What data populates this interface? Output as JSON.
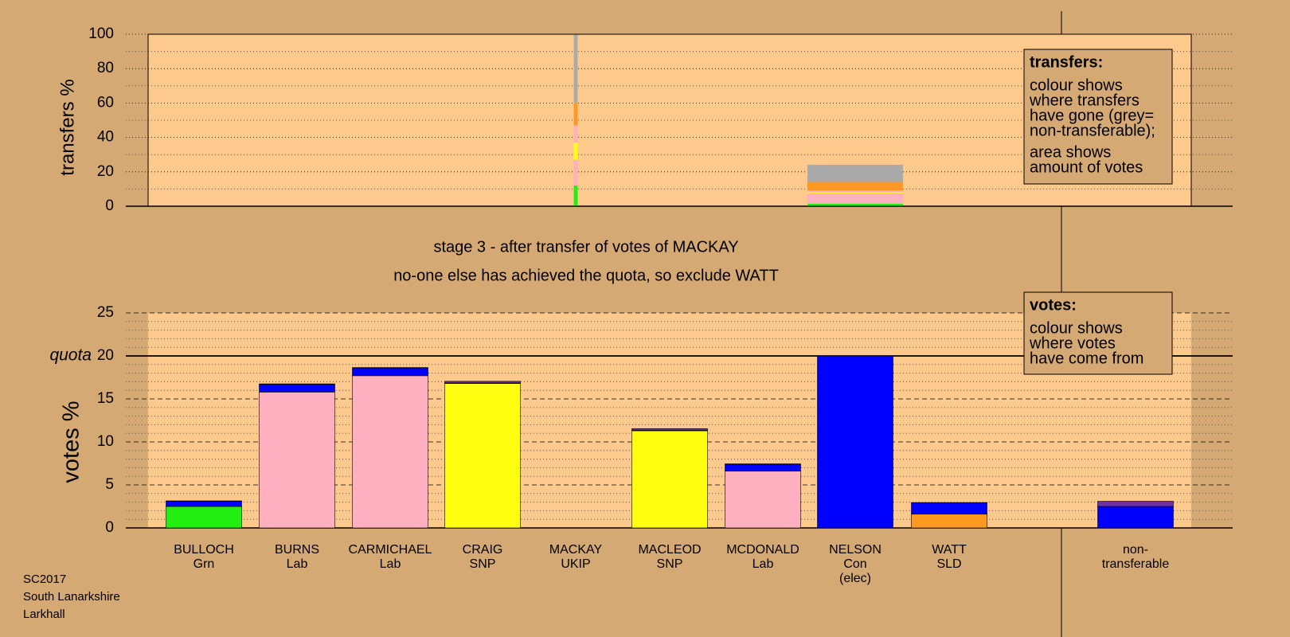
{
  "chart_data": [
    {
      "type": "stacked-bar",
      "ylabel": "transfers %",
      "ylim": [
        0,
        100
      ],
      "yticks": [
        0,
        20,
        40,
        60,
        80,
        100
      ],
      "minor_yticks": [
        10,
        30,
        50,
        70,
        90
      ],
      "bar_widths": [
        null,
        null,
        null,
        null,
        0.4,
        null,
        null,
        10,
        null,
        null,
        null
      ],
      "series": [
        {
          "color": "#22ee11",
          "values": [
            null,
            null,
            null,
            null,
            12,
            null,
            null,
            1.5,
            null,
            null,
            null
          ]
        },
        {
          "color": "#ffb0c0",
          "values": [
            null,
            null,
            null,
            null,
            7,
            null,
            null,
            3,
            null,
            null,
            null
          ]
        },
        {
          "color": "#ffb0c0",
          "values": [
            null,
            null,
            null,
            null,
            8,
            null,
            null,
            3,
            null,
            null,
            null
          ]
        },
        {
          "color": "#ffff11",
          "values": [
            null,
            null,
            null,
            null,
            5,
            null,
            null,
            0.3,
            null,
            null,
            null
          ]
        },
        {
          "color": "#ffff11",
          "values": [
            null,
            null,
            null,
            null,
            5,
            null,
            null,
            0.3,
            null,
            null,
            null
          ]
        },
        {
          "color": "#ffb0c0",
          "values": [
            null,
            null,
            null,
            null,
            10,
            null,
            null,
            1,
            null,
            null,
            null
          ]
        },
        {
          "color": "#ff9922",
          "values": [
            null,
            null,
            null,
            null,
            13,
            null,
            null,
            5,
            null,
            null,
            null
          ]
        },
        {
          "color": "#aaaaaa",
          "values": [
            null,
            null,
            null,
            null,
            40,
            null,
            null,
            10,
            null,
            null,
            null
          ]
        }
      ],
      "legend_title": "transfers:",
      "legend_lines": [
        "colour shows",
        "where transfers",
        "have gone (grey=",
        "non-transferable);"
      ],
      "legend_lines2": [
        "area shows",
        "amount of votes"
      ]
    },
    {
      "type": "stacked-bar",
      "title": "stage 3 - after transfer of votes of MACKAY",
      "subtitle": "no-one else has achieved the quota, so exclude WATT",
      "ylabel": "votes %",
      "ylim": [
        0,
        25
      ],
      "yticks": [
        0,
        5,
        10,
        15,
        20,
        25
      ],
      "minor_yticks": [
        1,
        2,
        3,
        4,
        6,
        7,
        8,
        9,
        11,
        12,
        13,
        14,
        16,
        17,
        18,
        19,
        21,
        22,
        23,
        24
      ],
      "quota": 20,
      "quota_label": "quota",
      "categories": [
        "BULLOCH\nGrn",
        "BURNS\nLab",
        "CARMICHAEL\nLab",
        "CRAIG\nSNP",
        "MACKAY\nUKIP",
        "MACLEOD\nSNP",
        "MCDONALD\nLab",
        "NELSON\nCon\n(elec)",
        "WATT\nSLD",
        null,
        "non-\ntransferable"
      ],
      "series": [
        {
          "colors": [
            "#22ee11",
            "#ffb0c0",
            "#ffb0c0",
            "#ffff11",
            "#7030a0",
            "#ffff11",
            "#ffb0c0",
            "#0000ff",
            "#ff9922",
            null,
            "#aaaaaa"
          ],
          "values": [
            2.5,
            15.8,
            17.7,
            16.8,
            0,
            11.3,
            6.6,
            20,
            1.6,
            null,
            0
          ]
        },
        {
          "color": "#0000ff",
          "values": [
            0.6,
            0.9,
            0.9,
            0.05,
            0,
            0.05,
            0.8,
            0,
            1.3,
            null,
            2.5
          ]
        },
        {
          "color": "#7030a0",
          "values": [
            0.05,
            0.05,
            0.05,
            0.2,
            0,
            0.2,
            0.05,
            0,
            0.05,
            null,
            0.6
          ]
        }
      ],
      "legend_title": "votes:",
      "legend_lines": [
        "colour shows",
        "where votes",
        "have come from"
      ],
      "footer": [
        "SC2017",
        "South Lanarkshire",
        "Larkhall"
      ]
    }
  ]
}
